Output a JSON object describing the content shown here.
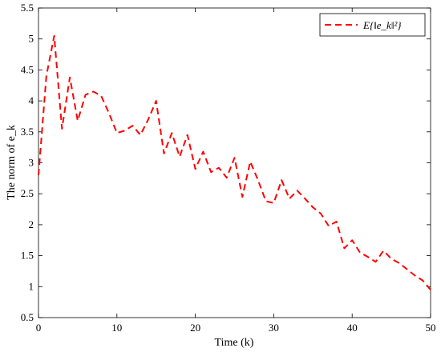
{
  "chart_data": {
    "type": "line",
    "xlabel": "Time (k)",
    "ylabel": "The norm of e_k",
    "xlim": [
      0,
      50
    ],
    "ylim": [
      0.5,
      5.5
    ],
    "xticks": [
      0,
      10,
      20,
      30,
      40,
      50
    ],
    "xtick_labels": [
      "0",
      "10",
      "20",
      "30",
      "40",
      "50"
    ],
    "yticks": [
      0.5,
      1,
      1.5,
      2,
      2.5,
      3,
      3.5,
      4,
      4.5,
      5,
      5.5
    ],
    "ytick_labels": [
      "0.5",
      "1",
      "1.5",
      "2",
      "2.5",
      "3",
      "3.5",
      "4",
      "4.5",
      "5",
      "5.5"
    ],
    "grid": false,
    "legend_position": "top-right",
    "series": [
      {
        "name": "E{‖e_k‖²}",
        "color": "#ff0000",
        "style": "dashed",
        "x": [
          0,
          1,
          2,
          3,
          4,
          5,
          6,
          7,
          8,
          9,
          10,
          11,
          12,
          13,
          14,
          15,
          16,
          17,
          18,
          19,
          20,
          21,
          22,
          23,
          24,
          25,
          26,
          27,
          28,
          29,
          30,
          31,
          32,
          33,
          34,
          35,
          36,
          37,
          38,
          39,
          40,
          41,
          42,
          43,
          44,
          45,
          46,
          47,
          48,
          49,
          50
        ],
        "y": [
          2.8,
          4.4,
          5.05,
          3.55,
          4.38,
          3.68,
          4.1,
          4.15,
          4.08,
          3.8,
          3.48,
          3.52,
          3.6,
          3.45,
          3.7,
          4.0,
          3.15,
          3.48,
          3.1,
          3.45,
          2.9,
          3.18,
          2.85,
          2.92,
          2.76,
          3.08,
          2.45,
          3.02,
          2.72,
          2.38,
          2.35,
          2.72,
          2.42,
          2.55,
          2.42,
          2.28,
          2.18,
          1.98,
          2.05,
          1.62,
          1.75,
          1.55,
          1.48,
          1.4,
          1.58,
          1.45,
          1.38,
          1.28,
          1.18,
          1.1,
          0.95
        ]
      }
    ]
  }
}
